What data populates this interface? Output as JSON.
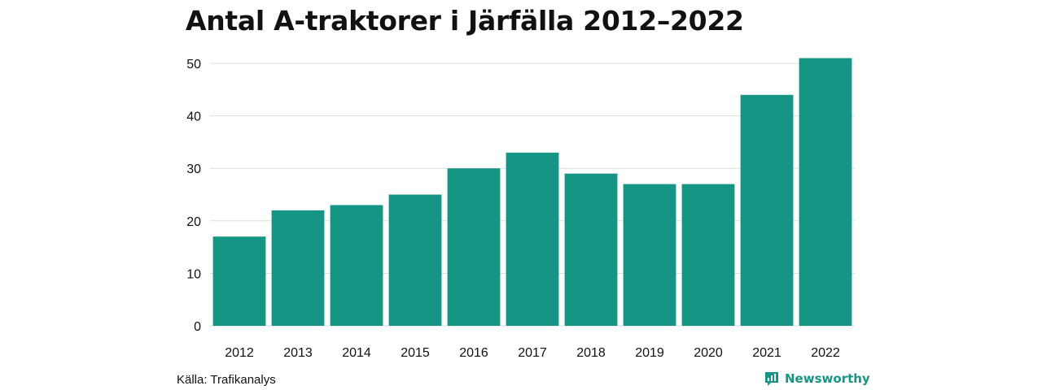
{
  "title": "Antal A-traktorer i Järfälla 2012–2022",
  "source": "Källa: Trafikanalys",
  "brand": {
    "name": "Newsworthy",
    "icon": "newsworthy-logo-icon"
  },
  "colors": {
    "bar": "#159584",
    "grid": "#dddddd",
    "text": "#111111"
  },
  "chart_data": {
    "type": "bar",
    "categories": [
      "2012",
      "2013",
      "2014",
      "2015",
      "2016",
      "2017",
      "2018",
      "2019",
      "2020",
      "2021",
      "2022"
    ],
    "values": [
      17,
      22,
      23,
      25,
      30,
      33,
      29,
      27,
      27,
      44,
      51
    ],
    "title": "Antal A-traktorer i Järfälla 2012–2022",
    "xlabel": "",
    "ylabel": "",
    "ylim": [
      0,
      50
    ],
    "yticks": [
      0,
      10,
      20,
      30,
      40,
      50
    ],
    "grid": true,
    "legend": "none"
  }
}
